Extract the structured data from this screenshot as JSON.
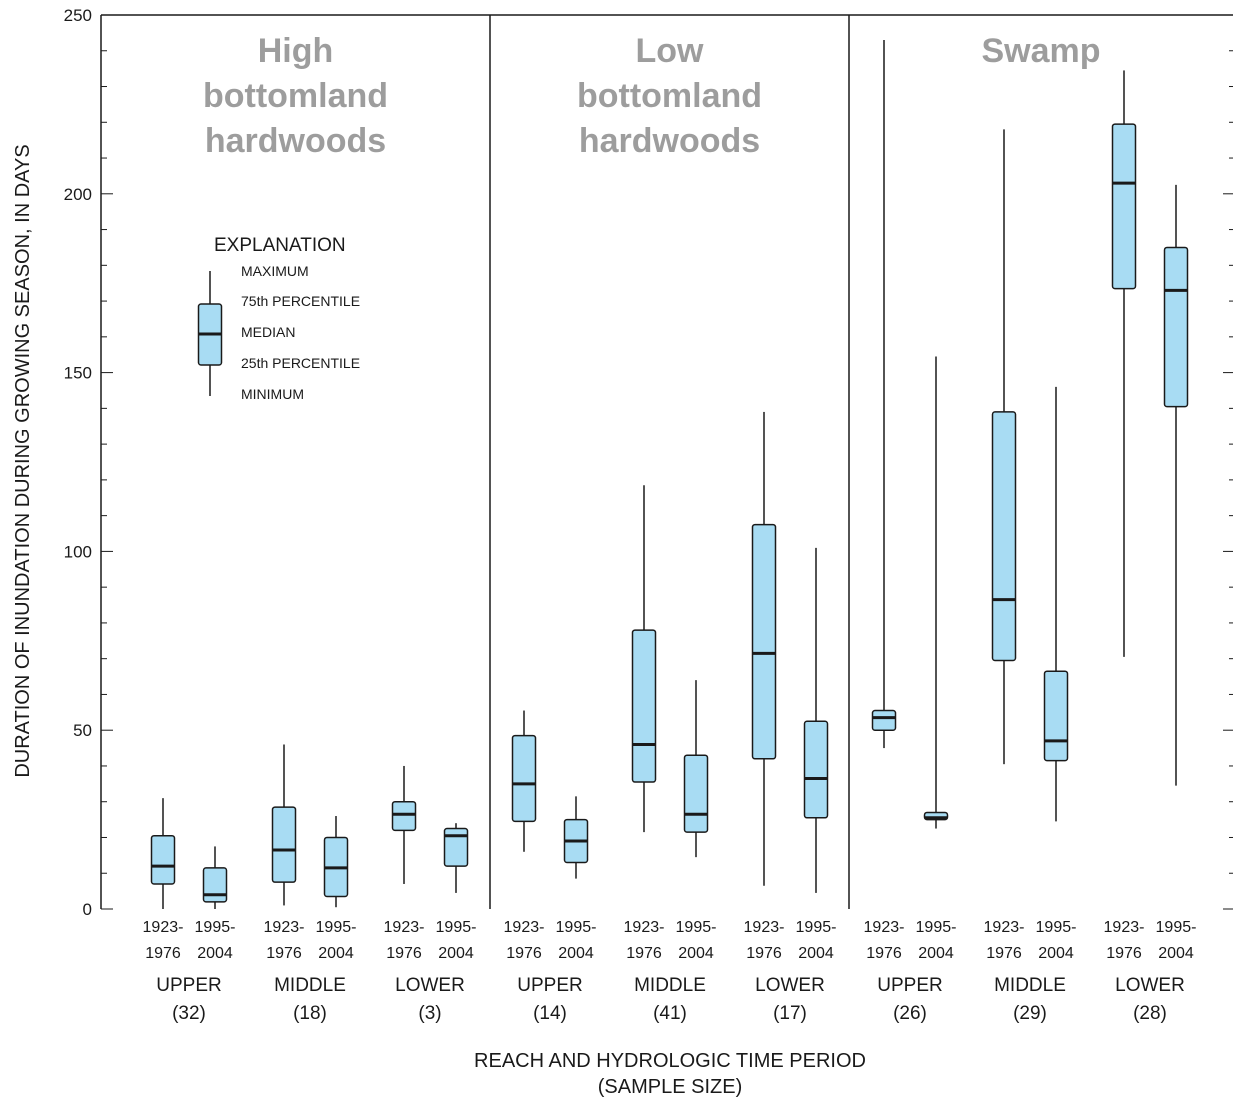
{
  "chart_data": {
    "type": "box",
    "ylabel": "DURATION OF INUNDATION DURING GROWING SEASON, IN DAYS",
    "xlabel_line1": "REACH AND HYDROLOGIC TIME PERIOD",
    "xlabel_line2": "(SAMPLE SIZE)",
    "ylim": [
      0,
      250
    ],
    "y_major_ticks": [
      0,
      50,
      100,
      150,
      200,
      250
    ],
    "y_minor_step": 10,
    "colors": {
      "box_fill": "#a8dcf3",
      "line": "#1a1a1a",
      "panel_title": "#9d9d9d"
    },
    "panels": [
      {
        "title_lines": [
          "High",
          "bottomland",
          "hardwoods"
        ]
      },
      {
        "title_lines": [
          "Low",
          "bottomland",
          "hardwoods"
        ]
      },
      {
        "title_lines": [
          "Swamp"
        ]
      }
    ],
    "period_lines": [
      [
        "1923-",
        "1976"
      ],
      [
        "1995-",
        "2004"
      ]
    ],
    "groups": [
      {
        "panel": 0,
        "reach": "UPPER",
        "n": "(32)",
        "boxes": [
          {
            "period": 0,
            "min": 0,
            "q1": 7,
            "median": 12,
            "q3": 20.5,
            "max": 31
          },
          {
            "period": 1,
            "min": 0,
            "q1": 2,
            "median": 4,
            "q3": 11.5,
            "max": 17.5
          }
        ]
      },
      {
        "panel": 0,
        "reach": "MIDDLE",
        "n": "(18)",
        "boxes": [
          {
            "period": 0,
            "min": 1,
            "q1": 7.5,
            "median": 16.5,
            "q3": 28.5,
            "max": 46
          },
          {
            "period": 1,
            "min": 0.5,
            "q1": 3.5,
            "median": 11.5,
            "q3": 20,
            "max": 26
          }
        ]
      },
      {
        "panel": 0,
        "reach": "LOWER",
        "n": "(3)",
        "boxes": [
          {
            "period": 0,
            "min": 7,
            "q1": 22,
            "median": 26.5,
            "q3": 30,
            "max": 40
          },
          {
            "period": 1,
            "min": 4.5,
            "q1": 12,
            "median": 20.5,
            "q3": 22.5,
            "max": 24
          }
        ]
      },
      {
        "panel": 1,
        "reach": "UPPER",
        "n": "(14)",
        "boxes": [
          {
            "period": 0,
            "min": 16,
            "q1": 24.5,
            "median": 35,
            "q3": 48.5,
            "max": 55.5
          },
          {
            "period": 1,
            "min": 8.5,
            "q1": 13,
            "median": 19,
            "q3": 25,
            "max": 31.5
          }
        ]
      },
      {
        "panel": 1,
        "reach": "MIDDLE",
        "n": "(41)",
        "boxes": [
          {
            "period": 0,
            "min": 21.5,
            "q1": 35.5,
            "median": 46,
            "q3": 78,
            "max": 118.5
          },
          {
            "period": 1,
            "min": 14.5,
            "q1": 21.5,
            "median": 26.5,
            "q3": 43,
            "max": 64
          }
        ]
      },
      {
        "panel": 1,
        "reach": "LOWER",
        "n": "(17)",
        "boxes": [
          {
            "period": 0,
            "min": 6.5,
            "q1": 42,
            "median": 71.5,
            "q3": 107.5,
            "max": 139
          },
          {
            "period": 1,
            "min": 4.5,
            "q1": 25.5,
            "median": 36.5,
            "q3": 52.5,
            "max": 101
          }
        ]
      },
      {
        "panel": 2,
        "reach": "UPPER",
        "n": "(26)",
        "boxes": [
          {
            "period": 0,
            "min": 45,
            "q1": 50,
            "median": 53.5,
            "q3": 55.5,
            "max": 243
          },
          {
            "period": 1,
            "min": 22.5,
            "q1": 25,
            "median": 25.5,
            "q3": 27,
            "max": 154.5
          }
        ]
      },
      {
        "panel": 2,
        "reach": "MIDDLE",
        "n": "(29)",
        "boxes": [
          {
            "period": 0,
            "min": 40.5,
            "q1": 69.5,
            "median": 86.5,
            "q3": 139,
            "max": 218
          },
          {
            "period": 1,
            "min": 24.5,
            "q1": 41.5,
            "median": 47,
            "q3": 66.5,
            "max": 146
          }
        ]
      },
      {
        "panel": 2,
        "reach": "LOWER",
        "n": "(28)",
        "boxes": [
          {
            "period": 0,
            "min": 70.5,
            "q1": 173.5,
            "median": 203,
            "q3": 219.5,
            "max": 234.5
          },
          {
            "period": 1,
            "min": 34.5,
            "q1": 140.5,
            "median": 173,
            "q3": 185,
            "max": 202.5
          }
        ]
      }
    ],
    "legend": {
      "title": "EXPLANATION",
      "labels": [
        "MAXIMUM",
        "75th PERCENTILE",
        "MEDIAN",
        "25th PERCENTILE",
        "MINIMUM"
      ]
    }
  }
}
